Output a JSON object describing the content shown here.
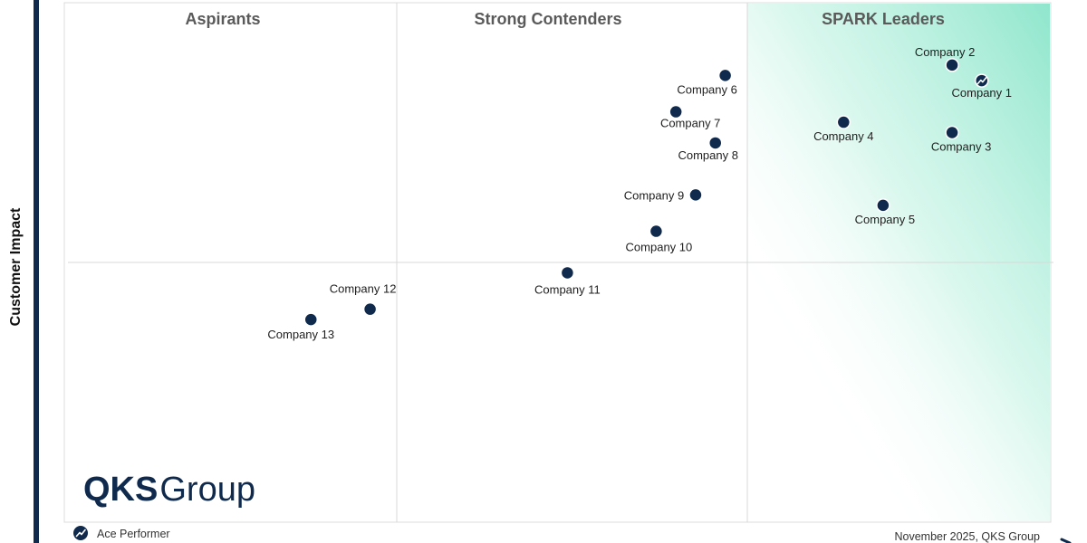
{
  "chart_data": {
    "type": "scatter",
    "ylabel": "Customer Impact",
    "quadrants": [
      "Aspirants",
      "Strong Contenders",
      "SPARK Leaders"
    ],
    "points": [
      {
        "name": "Company 1",
        "x": 93,
        "y": 85,
        "ace": true
      },
      {
        "name": "Company 2",
        "x": 90,
        "y": 88,
        "ace": false
      },
      {
        "name": "Company 3",
        "x": 90,
        "y": 75,
        "ace": false
      },
      {
        "name": "Company 4",
        "x": 79,
        "y": 77,
        "ace": false
      },
      {
        "name": "Company 5",
        "x": 83,
        "y": 61,
        "ace": false
      },
      {
        "name": "Company 6",
        "x": 67,
        "y": 86,
        "ace": false
      },
      {
        "name": "Company 7",
        "x": 62,
        "y": 79,
        "ace": false
      },
      {
        "name": "Company 8",
        "x": 66,
        "y": 73,
        "ace": false
      },
      {
        "name": "Company 9",
        "x": 64,
        "y": 63,
        "ace": false
      },
      {
        "name": "Company 10",
        "x": 60,
        "y": 56,
        "ace": false
      },
      {
        "name": "Company 11",
        "x": 51,
        "y": 48,
        "ace": false
      },
      {
        "name": "Company 12",
        "x": 31,
        "y": 41,
        "ace": false
      },
      {
        "name": "Company 13",
        "x": 25,
        "y": 39,
        "ace": false
      }
    ],
    "legend": {
      "ace_label": "Ace Performer"
    },
    "footer": "November 2025, QKS Group"
  },
  "logo": {
    "bold": "QKS",
    "regular": "Group"
  },
  "colors": {
    "point": "#0f2a4d",
    "leader_gradient": "#8fe6cc",
    "axis": "#0f2a4d",
    "grid": "#d8d8d8"
  }
}
